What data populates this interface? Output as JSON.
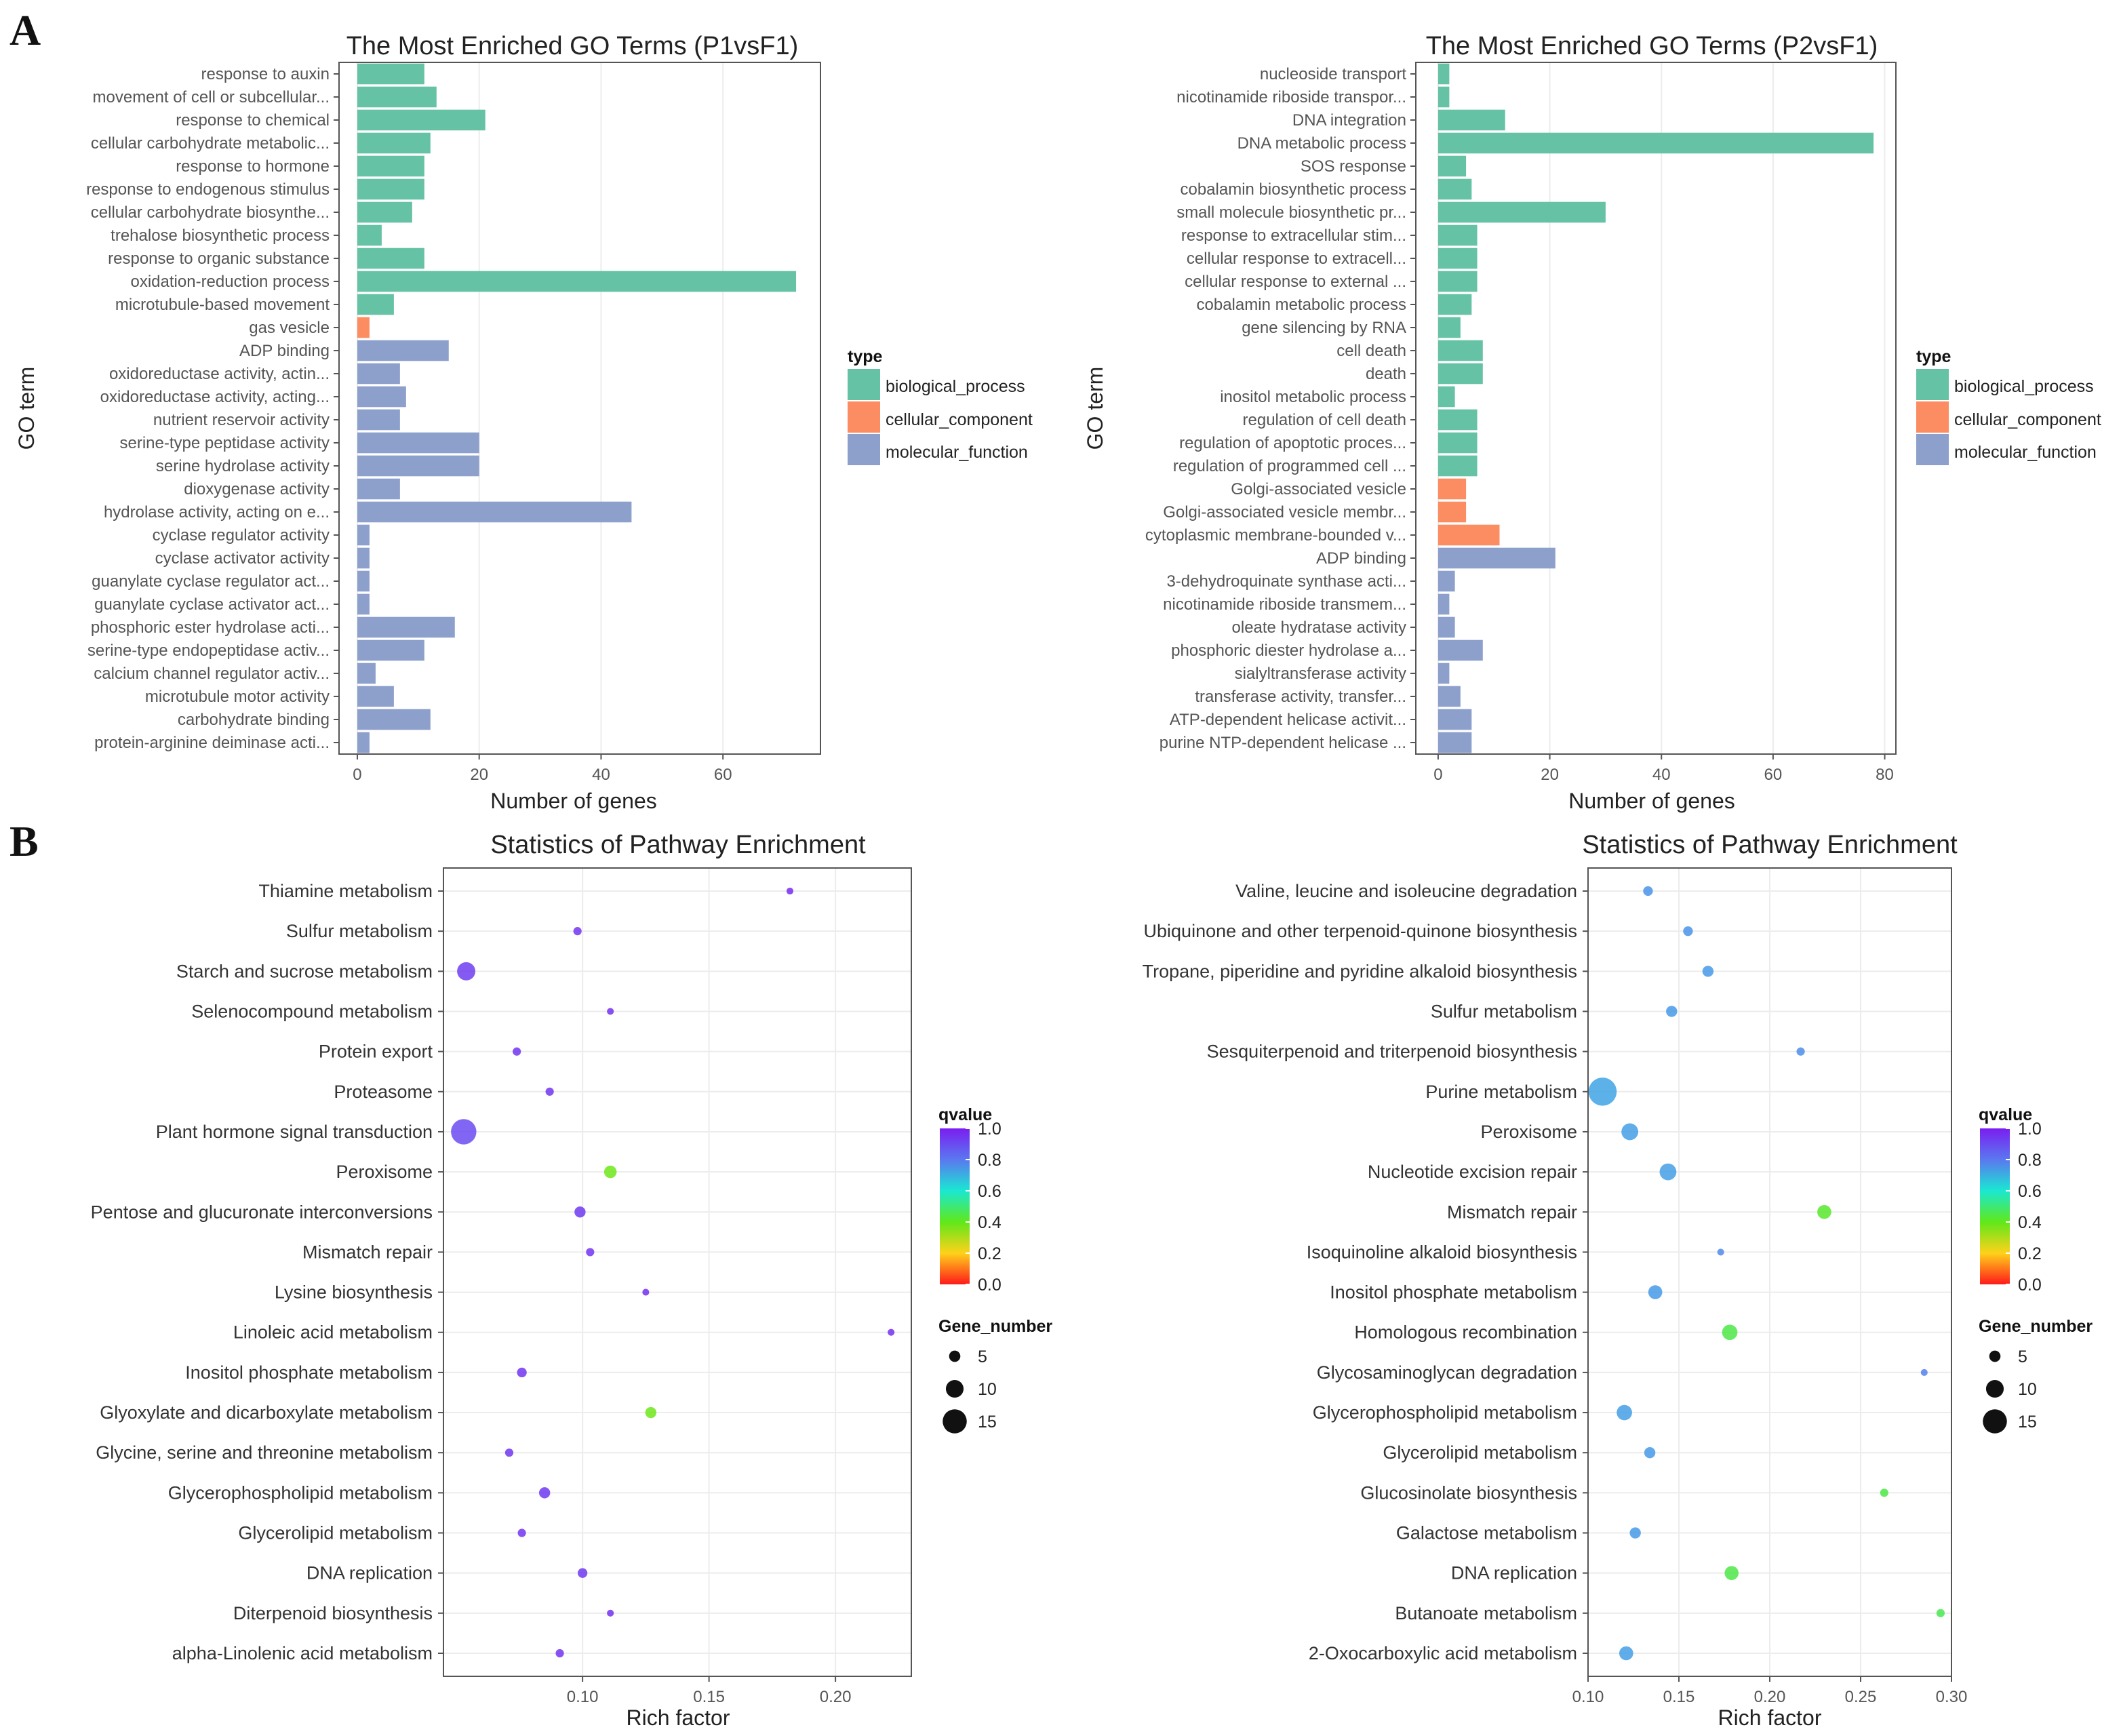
{
  "panels": {
    "a": "A",
    "b": "B"
  },
  "colors": {
    "biological_process": "#66c2a5",
    "cellular_component": "#fc8d62",
    "molecular_function": "#8da0cb"
  },
  "go_legend": {
    "title": "type",
    "items": [
      "biological_process",
      "cellular_component",
      "molecular_function"
    ]
  },
  "kegg_legend": {
    "q_title": "qvalue",
    "q_ticks": [
      "1.0",
      "0.8",
      "0.6",
      "0.4",
      "0.2",
      "0.0"
    ],
    "size_title": "Gene_number",
    "size_values": [
      5,
      10,
      15
    ],
    "size_labels": [
      "5",
      "10",
      "15"
    ]
  },
  "chart_data": [
    {
      "id": "go_p1",
      "type": "bar",
      "orientation": "horizontal",
      "title": "The Most Enriched GO Terms (P1vsF1)",
      "xlabel": "Number of genes",
      "ylabel": "GO term",
      "xlim": [
        -3,
        76
      ],
      "xticks": [
        0,
        20,
        40,
        60
      ],
      "categories": [
        "response to auxin",
        "movement of cell or subcellular...",
        "response to chemical",
        "cellular carbohydrate metabolic...",
        "response to hormone",
        "response to endogenous stimulus",
        "cellular carbohydrate biosynthe...",
        "trehalose biosynthetic process",
        "response to organic substance",
        "oxidation-reduction process",
        "microtubule-based movement",
        "gas vesicle",
        "ADP binding",
        "oxidoreductase activity, actin...",
        "oxidoreductase activity, acting...",
        "nutrient reservoir activity",
        "serine-type peptidase activity",
        "serine hydrolase activity",
        "dioxygenase activity",
        "hydrolase activity, acting on e...",
        "cyclase regulator activity",
        "cyclase activator activity",
        "guanylate cyclase regulator act...",
        "guanylate cyclase activator act...",
        "phosphoric ester hydrolase acti...",
        "serine-type endopeptidase activ...",
        "calcium channel regulator activ...",
        "microtubule motor activity",
        "carbohydrate binding",
        "protein-arginine deiminase acti..."
      ],
      "values": [
        11,
        13,
        21,
        12,
        11,
        11,
        9,
        4,
        11,
        72,
        6,
        2,
        15,
        7,
        8,
        7,
        20,
        20,
        7,
        45,
        2,
        2,
        2,
        2,
        16,
        11,
        3,
        6,
        12,
        2
      ],
      "types": [
        "biological_process",
        "biological_process",
        "biological_process",
        "biological_process",
        "biological_process",
        "biological_process",
        "biological_process",
        "biological_process",
        "biological_process",
        "biological_process",
        "biological_process",
        "cellular_component",
        "molecular_function",
        "molecular_function",
        "molecular_function",
        "molecular_function",
        "molecular_function",
        "molecular_function",
        "molecular_function",
        "molecular_function",
        "molecular_function",
        "molecular_function",
        "molecular_function",
        "molecular_function",
        "molecular_function",
        "molecular_function",
        "molecular_function",
        "molecular_function",
        "molecular_function",
        "molecular_function"
      ]
    },
    {
      "id": "go_p2",
      "type": "bar",
      "orientation": "horizontal",
      "title": "The Most Enriched GO Terms (P2vsF1)",
      "xlabel": "Number of genes",
      "ylabel": "GO term",
      "xlim": [
        -4,
        82
      ],
      "xticks": [
        0,
        20,
        40,
        60,
        80
      ],
      "categories": [
        "nucleoside transport",
        "nicotinamide riboside transpor...",
        "DNA integration",
        "DNA metabolic process",
        "SOS response",
        "cobalamin biosynthetic process",
        "small molecule biosynthetic pr...",
        "response to extracellular stim...",
        "cellular response to extracell...",
        "cellular response to external ...",
        "cobalamin metabolic process",
        "gene silencing by RNA",
        "cell death",
        "death",
        "inositol metabolic process",
        "regulation of cell death",
        "regulation of apoptotic proces...",
        "regulation of programmed cell ...",
        "Golgi-associated vesicle",
        "Golgi-associated vesicle membr...",
        "cytoplasmic membrane-bounded v...",
        "ADP binding",
        "3-dehydroquinate synthase acti...",
        "nicotinamide riboside transmem...",
        "oleate hydratase activity",
        "phosphoric diester hydrolase a...",
        "sialyltransferase activity",
        "transferase activity, transfer...",
        "ATP-dependent helicase activit...",
        "purine NTP-dependent helicase ..."
      ],
      "values": [
        2,
        2,
        12,
        78,
        5,
        6,
        30,
        7,
        7,
        7,
        6,
        4,
        8,
        8,
        3,
        7,
        7,
        7,
        5,
        5,
        11,
        21,
        3,
        2,
        3,
        8,
        2,
        4,
        6,
        6
      ],
      "types": [
        "biological_process",
        "biological_process",
        "biological_process",
        "biological_process",
        "biological_process",
        "biological_process",
        "biological_process",
        "biological_process",
        "biological_process",
        "biological_process",
        "biological_process",
        "biological_process",
        "biological_process",
        "biological_process",
        "biological_process",
        "biological_process",
        "biological_process",
        "biological_process",
        "cellular_component",
        "cellular_component",
        "cellular_component",
        "molecular_function",
        "molecular_function",
        "molecular_function",
        "molecular_function",
        "molecular_function",
        "molecular_function",
        "molecular_function",
        "molecular_function",
        "molecular_function"
      ]
    },
    {
      "id": "kegg_p1",
      "type": "scatter",
      "title": "Statistics of Pathway Enrichment",
      "xlabel": "Rich factor",
      "xlim": [
        0.045,
        0.23
      ],
      "xticks": [
        0.1,
        0.15,
        0.2
      ],
      "xtick_labels": [
        "0.10",
        "0.15",
        "0.20"
      ],
      "categories": [
        "Thiamine metabolism",
        "Sulfur metabolism",
        "Starch and sucrose metabolism",
        "Selenocompound metabolism",
        "Protein export",
        "Proteasome",
        "Plant hormone signal transduction",
        "Peroxisome",
        "Pentose and glucuronate interconversions",
        "Mismatch repair",
        "Lysine biosynthesis",
        "Linoleic acid metabolism",
        "Inositol phosphate metabolism",
        "Glyoxylate and dicarboxylate metabolism",
        "Glycine, serine and threonine metabolism",
        "Glycerophospholipid metabolism",
        "Glycerolipid metabolism",
        "DNA replication",
        "Diterpenoid biosynthesis",
        "alpha-Linolenic acid metabolism"
      ],
      "rich_factor": [
        0.182,
        0.098,
        0.054,
        0.111,
        0.074,
        0.087,
        0.053,
        0.111,
        0.099,
        0.103,
        0.125,
        0.222,
        0.076,
        0.127,
        0.071,
        0.085,
        0.076,
        0.1,
        0.111,
        0.091
      ],
      "gene_number": [
        1,
        2,
        9,
        1,
        2,
        2,
        14,
        5,
        4,
        2,
        1,
        1,
        3,
        4,
        2,
        4,
        2,
        3,
        1,
        2
      ],
      "qvalue": [
        0.97,
        0.95,
        0.93,
        0.96,
        0.95,
        0.95,
        0.9,
        0.38,
        0.94,
        0.95,
        0.96,
        0.96,
        0.95,
        0.38,
        0.95,
        0.94,
        0.95,
        0.94,
        0.96,
        0.95
      ]
    },
    {
      "id": "kegg_p2",
      "type": "scatter",
      "title": "Statistics of Pathway Enrichment",
      "xlabel": "Rich factor",
      "xlim": [
        0.1,
        0.3
      ],
      "xticks": [
        0.1,
        0.15,
        0.2,
        0.25,
        0.3
      ],
      "xtick_labels": [
        "0.10",
        "0.15",
        "0.20",
        "0.25",
        "0.30"
      ],
      "categories": [
        "Valine, leucine and isoleucine degradation",
        "Ubiquinone and other terpenoid-quinone biosynthesis",
        "Tropane, piperidine and pyridine alkaloid biosynthesis",
        "Sulfur metabolism",
        "Sesquiterpenoid and triterpenoid biosynthesis",
        "Purine metabolism",
        "Peroxisome",
        "Nucleotide excision repair",
        "Mismatch repair",
        "Isoquinoline alkaloid biosynthesis",
        "Inositol phosphate metabolism",
        "Homologous recombination",
        "Glycosaminoglycan degradation",
        "Glycerophospholipid metabolism",
        "Glycerolipid metabolism",
        "Glucosinolate biosynthesis",
        "Galactose metabolism",
        "DNA replication",
        "Butanoate metabolism",
        "2-Oxocarboxylic acid metabolism"
      ],
      "rich_factor": [
        0.133,
        0.155,
        0.166,
        0.146,
        0.217,
        0.108,
        0.123,
        0.144,
        0.23,
        0.173,
        0.137,
        0.178,
        0.285,
        0.12,
        0.134,
        0.263,
        0.126,
        0.179,
        0.294,
        0.121
      ],
      "gene_number": [
        3,
        3,
        4,
        4,
        2,
        16,
        8,
        8,
        6,
        1,
        6,
        7,
        1,
        7,
        4,
        2,
        4,
        6,
        2,
        6
      ],
      "qvalue": [
        0.75,
        0.75,
        0.74,
        0.74,
        0.76,
        0.72,
        0.73,
        0.73,
        0.42,
        0.77,
        0.74,
        0.45,
        0.78,
        0.73,
        0.74,
        0.45,
        0.74,
        0.45,
        0.46,
        0.73
      ]
    }
  ]
}
